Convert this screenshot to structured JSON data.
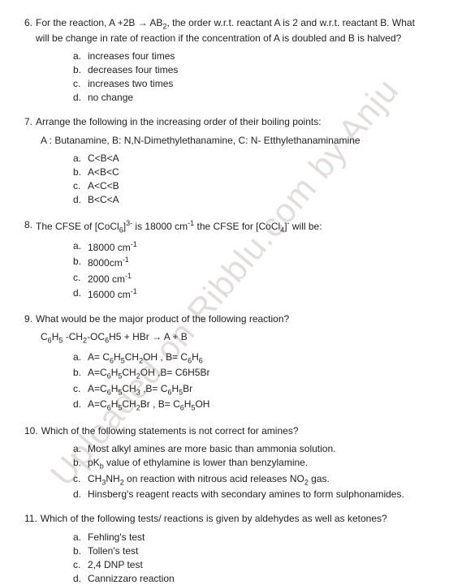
{
  "watermark": "Uploaded on Ribblu.com by Anju",
  "questions": [
    {
      "num": "6.",
      "text_html": "For the reaction, A +2B → AB<sub>2</sub>,  the order w.r.t. reactant A is 2 and w.r.t. reactant B. What will be change in rate of reaction if the concentration of A is doubled and B is halved?",
      "options": [
        {
          "l": "a.",
          "t": "increases four times"
        },
        {
          "l": "b.",
          "t": "decreases four times"
        },
        {
          "l": "c.",
          "t": "increases two times"
        },
        {
          "l": "d.",
          "t": "no change"
        }
      ]
    },
    {
      "num": "7.",
      "text_html": "Arrange the following in the increasing order of their boiling points:",
      "subline": "A : Butanamine, B: N,N-Dimethylethanamine, C: N- Etthylethanaminamine",
      "options": [
        {
          "l": "a.",
          "t": "C<B<A"
        },
        {
          "l": "b.",
          "t": "A<B<C"
        },
        {
          "l": "c.",
          "t": "A<C<B"
        },
        {
          "l": "d.",
          "t": "B<C<A"
        }
      ]
    },
    {
      "num": "8.",
      "text_html": "The CFSE of [CoCl<sub>6</sub>]<sup>3-</sup> is 18000 cm<sup>-1</sup> the CFSE for [CoCl<sub>4</sub>]<sup>-</sup> will be:",
      "options": [
        {
          "l": "a.",
          "t_html": "18000 cm<sup>-1</sup>"
        },
        {
          "l": "b.",
          "t_html": "8000cm<sup>-1</sup>"
        },
        {
          "l": "c.",
          "t_html": "2000 cm<sup>-1</sup>"
        },
        {
          "l": "d.",
          "t_html": "16000 cm<sup>-1</sup>"
        }
      ]
    },
    {
      "num": "9.",
      "text_html": "What would be the major product of the following reaction?",
      "subline_html": "C<sub>6</sub>H<sub>5</sub> -CH<sub>2</sub>-OC<sub>6</sub>H5 + HBr → A + B ",
      "options": [
        {
          "l": "a.",
          "t_html": "A= C<sub>6</sub>H<sub>5</sub>CH<sub>2</sub>OH , B= C<sub>6</sub>H<sub>6</sub>"
        },
        {
          "l": "b.",
          "t_html": "A=C<sub>6</sub>H<sub>5</sub>CH<sub>2</sub>OH ,B= C6H5Br"
        },
        {
          "l": "c.",
          "t_html": "A=C<sub>6</sub>H<sub>5</sub>CH<sub>3</sub>  ,B= C<sub>6</sub>H<sub>5</sub>Br"
        },
        {
          "l": "d.",
          "t_html": "A=C<sub>6</sub>H<sub>5</sub>CH<sub>2</sub>Br , B= C<sub>6</sub>H<sub>5</sub>OH"
        }
      ]
    },
    {
      "num": "10.",
      "text_html": " Which of the following statements is not correct for amines?",
      "options": [
        {
          "l": "a.",
          "t": "Most alkyl amines are more basic than ammonia solution."
        },
        {
          "l": "b.",
          "t_html": "pK<sub>b</sub> value of ethylamine is lower than benzylamine."
        },
        {
          "l": "c.",
          "t_html": "CH<sub>3</sub>NH<sub>2</sub> on reaction with nitrous acid releases NO<sub>2</sub> gas."
        },
        {
          "l": "d.",
          "t": "Hinsberg's reagent reacts with secondary amines to form sulphonamides."
        }
      ]
    },
    {
      "num": "11.",
      "text_html": " Which of the following tests/ reactions is given by aldehydes as well as ketones?",
      "options": [
        {
          "l": "a.",
          "t": "Fehling's test"
        },
        {
          "l": "b.",
          "t": "Tollen's test"
        },
        {
          "l": "c.",
          "t": "2,4 DNP test"
        },
        {
          "l": "d.",
          "t": "Cannizzaro reaction"
        }
      ]
    }
  ]
}
